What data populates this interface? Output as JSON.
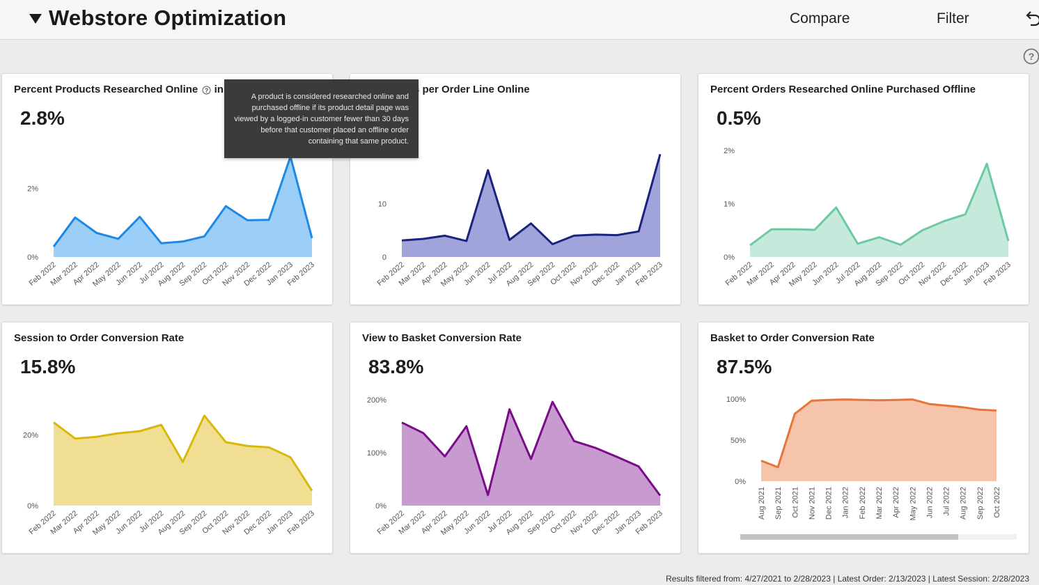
{
  "header": {
    "title": "Webstore Optimization",
    "compare_label": "Compare",
    "filter_label": "Filter"
  },
  "tooltip": {
    "text": "A product is considered researched online and purchased offline if its product detail page was viewed by a logged-in customer fewer than 30 days before that customer placed an offline order containing that same product."
  },
  "footer": {
    "text": "Results filtered from: 4/27/2021 to 2/28/2023  |  Latest Order: 2/13/2023  |  Latest Session: 2/28/2023"
  },
  "cards": [
    {
      "title": "Percent Products Researched Online",
      "title_trailing": "in",
      "kpi": "2.8%",
      "color": "#1e88e5",
      "fill": "#9ccff7",
      "chart_data": {
        "type": "area",
        "x": [
          "Feb 2022",
          "Mar 2022",
          "Apr 2022",
          "May 2022",
          "Jun 2022",
          "Jul 2022",
          "Aug 2022",
          "Sep 2022",
          "Oct 2022",
          "Nov 2022",
          "Dec 2022",
          "Jan 2023",
          "Feb 2023"
        ],
        "values": [
          0.3,
          1.15,
          0.7,
          0.53,
          1.17,
          0.4,
          0.45,
          0.6,
          1.48,
          1.07,
          1.08,
          2.92,
          0.55
        ],
        "ylim": [
          0,
          3.0
        ],
        "yticks": [
          {
            "v": 0,
            "label": "0%"
          },
          {
            "v": 2,
            "label": "2%"
          }
        ]
      }
    },
    {
      "title": "Page Views per Order Line Online",
      "kpi": "",
      "color": "#1a237e",
      "fill": "#a0a4da",
      "chart_data": {
        "type": "area",
        "x": [
          "Feb 2022",
          "Mar 2022",
          "Apr 2022",
          "May 2022",
          "Jun 2022",
          "Jul 2022",
          "Aug 2022",
          "Sep 2022",
          "Oct 2022",
          "Nov 2022",
          "Dec 2022",
          "Jan 2023",
          "Feb 2023"
        ],
        "values": [
          3.1,
          3.4,
          4.0,
          3.0,
          16.3,
          3.2,
          6.3,
          2.4,
          4.0,
          4.2,
          4.1,
          4.8,
          19.3
        ],
        "ylim": [
          0,
          20
        ],
        "yticks": [
          {
            "v": 0,
            "label": "0"
          },
          {
            "v": 10,
            "label": "10"
          }
        ]
      }
    },
    {
      "title": "Percent Orders Researched Online Purchased Offline",
      "kpi": "0.5%",
      "color": "#6cc9a2",
      "fill": "#c5eadb",
      "chart_data": {
        "type": "area",
        "x": [
          "Feb 2022",
          "Mar 2022",
          "Apr 2022",
          "May 2022",
          "Jun 2022",
          "Jul 2022",
          "Aug 2022",
          "Sep 2022",
          "Oct 2022",
          "Nov 2022",
          "Dec 2022",
          "Jan 2023",
          "Feb 2023"
        ],
        "values": [
          0.22,
          0.52,
          0.52,
          0.51,
          0.93,
          0.25,
          0.37,
          0.23,
          0.5,
          0.67,
          0.8,
          1.75,
          0.3
        ],
        "ylim": [
          0,
          2
        ],
        "yticks": [
          {
            "v": 0,
            "label": "0%"
          },
          {
            "v": 1,
            "label": "1%"
          },
          {
            "v": 2,
            "label": "2%"
          }
        ]
      }
    },
    {
      "title": "Session to Order Conversion Rate",
      "kpi": "15.8%",
      "color": "#d9b80c",
      "fill": "#f0df93",
      "chart_data": {
        "type": "area",
        "x": [
          "Feb 2022",
          "Mar 2022",
          "Apr 2022",
          "May 2022",
          "Jun 2022",
          "Jul 2022",
          "Aug 2022",
          "Sep 2022",
          "Oct 2022",
          "Nov 2022",
          "Dec 2022",
          "Jan 2023",
          "Feb 2023"
        ],
        "values": [
          23.6,
          19.0,
          19.5,
          20.5,
          21.1,
          22.9,
          12.4,
          25.5,
          18.0,
          16.9,
          16.5,
          13.7,
          4.2
        ],
        "ylim": [
          0,
          30
        ],
        "yticks": [
          {
            "v": 0,
            "label": "0%"
          },
          {
            "v": 20,
            "label": "20%"
          }
        ]
      }
    },
    {
      "title": "View to Basket Conversion Rate",
      "kpi": "83.8%",
      "color": "#7a0c8a",
      "fill": "#c89bd0",
      "chart_data": {
        "type": "area",
        "x": [
          "Feb 2022",
          "Mar 2022",
          "Apr 2022",
          "May 2022",
          "Jun 2022",
          "Jul 2022",
          "Aug 2022",
          "Sep 2022",
          "Oct 2022",
          "Nov 2022",
          "Dec 2022",
          "Jan 2023",
          "Feb 2023"
        ],
        "values": [
          157,
          137,
          93,
          150,
          20,
          182,
          88,
          196,
          122,
          109,
          92,
          74,
          19
        ],
        "ylim": [
          0,
          200
        ],
        "yticks": [
          {
            "v": 0,
            "label": "0%"
          },
          {
            "v": 100,
            "label": "100%"
          },
          {
            "v": 200,
            "label": "200%"
          }
        ]
      }
    },
    {
      "title": "Basket to Order Conversion Rate",
      "kpi": "87.5%",
      "color": "#e8743b",
      "fill": "#f5c4ab",
      "chart_data": {
        "type": "area",
        "x": [
          "Aug 2021",
          "Sep 2021",
          "Oct 2021",
          "Nov 2021",
          "Dec 2021",
          "Jan 2022",
          "Feb 2022",
          "Mar 2022",
          "Apr 2022",
          "May 2022",
          "Jun 2022",
          "Jul 2022",
          "Aug 2022",
          "Sep 2022",
          "Oct 2022"
        ],
        "values": [
          25,
          17,
          82,
          98,
          99,
          99.5,
          99,
          98.5,
          99,
          99.5,
          94,
          92,
          90,
          87,
          86
        ],
        "ylim": [
          0,
          100
        ],
        "yticks": [
          {
            "v": 0,
            "label": "0%"
          },
          {
            "v": 50,
            "label": "50%"
          },
          {
            "v": 100,
            "label": "100%"
          }
        ]
      }
    }
  ]
}
